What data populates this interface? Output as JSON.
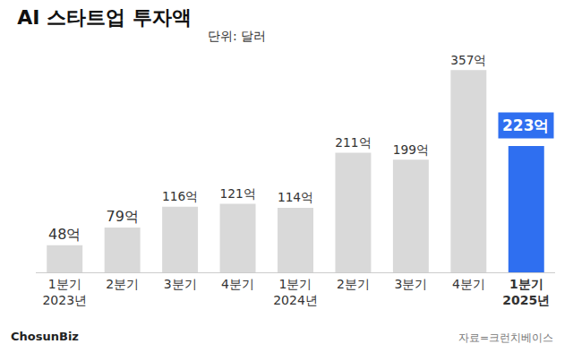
{
  "chart_data": {
    "type": "bar",
    "title": "AI 스타트업 투자액",
    "subtitle": "단위: 달러",
    "categories": [
      "1분기\n2023년",
      "2분기",
      "3분기",
      "4분기",
      "1분기\n2024년",
      "2분기",
      "3분기",
      "4분기",
      "1분기\n2025년"
    ],
    "values": [
      48,
      79,
      116,
      121,
      114,
      211,
      199,
      357,
      223
    ],
    "value_labels": [
      "48억",
      "79억",
      "116억",
      "121억",
      "114억",
      "211억",
      "199억",
      "357억",
      "223억"
    ],
    "colors": [
      "#d9d9d9",
      "#d9d9d9",
      "#d9d9d9",
      "#d9d9d9",
      "#d9d9d9",
      "#d9d9d9",
      "#d9d9d9",
      "#d9d9d9",
      "#2f6ff0"
    ],
    "data_labels": true,
    "tick_labels": "x",
    "grid": false,
    "ylim": [
      0,
      370
    ],
    "yticks": [],
    "source": "자료=크런치베이스",
    "credit": "ChosunBiz"
  }
}
